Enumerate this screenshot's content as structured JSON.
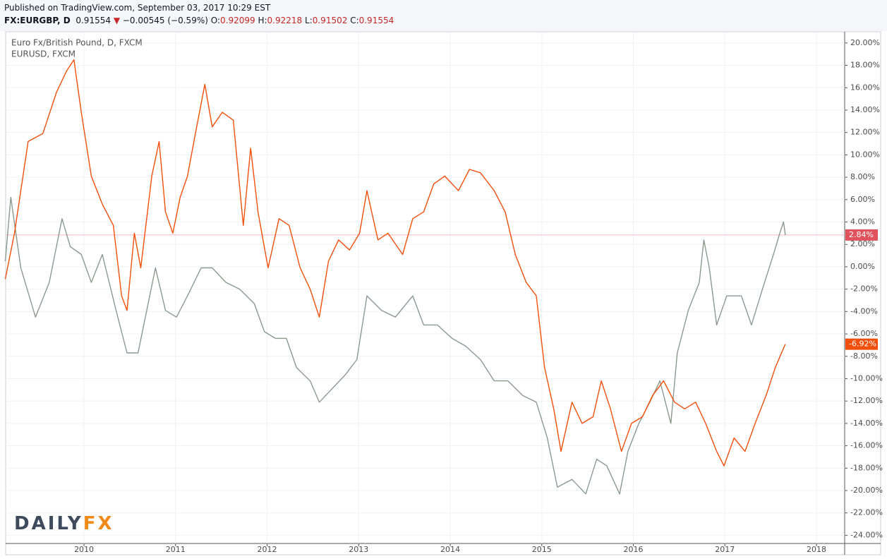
{
  "header": {
    "published": "Published on TradingView.com, September 03, 2017 10:29 EST",
    "symbol": "FX:EURGBP, D",
    "price": "0.91554",
    "change": "−0.00545 (−0.59%)",
    "ohlc": [
      {
        "label": "O:",
        "value": "0.92099"
      },
      {
        "label": "H:",
        "value": "0.92218"
      },
      {
        "label": "L:",
        "value": "0.91502"
      },
      {
        "label": "C:",
        "value": "0.91554"
      }
    ]
  },
  "logo": [
    "DAILY",
    "FX"
  ],
  "chart_data": {
    "type": "line",
    "grid": true,
    "xlim": [
      2009.144,
      2018.308
    ],
    "xticks": [
      2010,
      2011,
      2012,
      2013,
      2014,
      2015,
      2016,
      2017,
      2018
    ],
    "ylim": [
      -24.73,
      21.0
    ],
    "yticks": [
      {
        "value": 20,
        "label": "20.00%"
      },
      {
        "value": 18,
        "label": "18.00%"
      },
      {
        "value": 16,
        "label": "16.00%"
      },
      {
        "value": 14,
        "label": "14.00%"
      },
      {
        "value": 12,
        "label": "12.00%"
      },
      {
        "value": 10,
        "label": "10.00%"
      },
      {
        "value": 8,
        "label": "8.00%"
      },
      {
        "value": 6,
        "label": "6.00%"
      },
      {
        "value": 4,
        "label": "4.00%"
      },
      {
        "value": 2,
        "label": "2.00%"
      },
      {
        "value": 0,
        "label": "0.00%"
      },
      {
        "value": -2,
        "label": "-2.00%"
      },
      {
        "value": -4,
        "label": "-4.00%"
      },
      {
        "value": -6,
        "label": "-6.00%"
      },
      {
        "value": -8,
        "label": "-8.00%"
      },
      {
        "value": -10,
        "label": "-10.00%"
      },
      {
        "value": -12,
        "label": "-12.00%"
      },
      {
        "value": -14,
        "label": "-14.00%"
      },
      {
        "value": -16,
        "label": "-16.00%"
      },
      {
        "value": -18,
        "label": "-18.00%"
      },
      {
        "value": -20,
        "label": "-20.00%"
      },
      {
        "value": -22,
        "label": "-22.00%"
      },
      {
        "value": -24,
        "label": "-24.00%"
      }
    ],
    "series": [
      {
        "name": "Euro Fx/British Pound, D, FXCM",
        "color": "#8a9a8c",
        "label_color": "#e0535c",
        "x": [
          2009.14,
          2009.2,
          2009.31,
          2009.47,
          2009.62,
          2009.76,
          2009.85,
          2009.97,
          2010.08,
          2010.2,
          2010.35,
          2010.47,
          2010.59,
          2010.7,
          2010.78,
          2010.89,
          2011.01,
          2011.13,
          2011.28,
          2011.4,
          2011.55,
          2011.7,
          2011.86,
          2011.97,
          2012.09,
          2012.21,
          2012.32,
          2012.47,
          2012.57,
          2012.71,
          2012.86,
          2012.98,
          2013.09,
          2013.25,
          2013.4,
          2013.59,
          2013.71,
          2013.86,
          2014.02,
          2014.17,
          2014.33,
          2014.48,
          2014.63,
          2014.79,
          2014.94,
          2015.06,
          2015.17,
          2015.33,
          2015.48,
          2015.6,
          2015.71,
          2015.85,
          2015.94,
          2016.06,
          2016.18,
          2016.29,
          2016.41,
          2016.48,
          2016.6,
          2016.72,
          2016.77,
          2016.83,
          2016.91,
          2017.02,
          2017.18,
          2017.29,
          2017.41,
          2017.53,
          2017.6,
          2017.64,
          2017.66
        ],
        "values": [
          0.5,
          6.2,
          -0.1,
          -4.5,
          -1.4,
          4.3,
          1.8,
          1.1,
          -1.4,
          1.1,
          -3.9,
          -7.7,
          -7.7,
          -3.3,
          -0.1,
          -3.9,
          -4.5,
          -2.6,
          -0.1,
          -0.1,
          -1.4,
          -2.0,
          -3.3,
          -5.8,
          -6.4,
          -6.4,
          -9.0,
          -10.2,
          -12.1,
          -10.9,
          -9.6,
          -8.3,
          -2.6,
          -3.9,
          -4.5,
          -2.6,
          -5.2,
          -5.2,
          -6.4,
          -7.1,
          -8.3,
          -10.2,
          -10.2,
          -11.5,
          -12.1,
          -15.3,
          -19.7,
          -19.0,
          -20.3,
          -17.2,
          -17.8,
          -20.3,
          -16.5,
          -14.0,
          -12.1,
          -10.2,
          -14.0,
          -7.7,
          -3.9,
          -1.4,
          2.4,
          -0.1,
          -5.2,
          -2.6,
          -2.6,
          -5.2,
          -2.0,
          1.1,
          3.0,
          4.0,
          2.84
        ],
        "last_value": 2.84,
        "last_label": "2.84%"
      },
      {
        "name": "EURUSD, FXCM",
        "color": "#f24f0c",
        "label_color": "#f24f0c",
        "x": [
          2009.14,
          2009.24,
          2009.39,
          2009.55,
          2009.7,
          2009.81,
          2009.89,
          2009.97,
          2010.08,
          2010.2,
          2010.32,
          2010.41,
          2010.47,
          2010.55,
          2010.62,
          2010.74,
          2010.82,
          2010.89,
          2010.97,
          2011.05,
          2011.13,
          2011.2,
          2011.32,
          2011.4,
          2011.51,
          2011.63,
          2011.74,
          2011.82,
          2011.9,
          2012.01,
          2012.13,
          2012.24,
          2012.36,
          2012.47,
          2012.57,
          2012.67,
          2012.78,
          2012.9,
          2013.01,
          2013.09,
          2013.21,
          2013.32,
          2013.48,
          2013.59,
          2013.71,
          2013.82,
          2013.94,
          2014.09,
          2014.21,
          2014.33,
          2014.48,
          2014.6,
          2014.71,
          2014.83,
          2014.94,
          2015.03,
          2015.13,
          2015.21,
          2015.33,
          2015.44,
          2015.56,
          2015.65,
          2015.75,
          2015.87,
          2015.98,
          2016.1,
          2016.21,
          2016.33,
          2016.45,
          2016.56,
          2016.68,
          2016.79,
          2016.91,
          2016.99,
          2017.1,
          2017.22,
          2017.33,
          2017.45,
          2017.55,
          2017.66
        ],
        "values": [
          -1.1,
          3,
          11.2,
          11.9,
          15.6,
          17.5,
          18.5,
          13.8,
          8.1,
          5.6,
          3.7,
          -2.6,
          -3.9,
          3,
          -0.1,
          8.1,
          11.2,
          4.9,
          3,
          6.2,
          8.1,
          11.2,
          16.3,
          12.5,
          13.8,
          13.1,
          3.7,
          10.6,
          4.9,
          -0.1,
          4.3,
          3.7,
          -0.1,
          -2.0,
          -4.5,
          0.5,
          2.4,
          1.5,
          3,
          6.8,
          2.4,
          3,
          1.1,
          4.3,
          4.9,
          7.4,
          8.1,
          6.8,
          8.7,
          8.4,
          6.8,
          4.9,
          1.1,
          -1.4,
          -2.6,
          -9.0,
          -12.7,
          -16.5,
          -12.1,
          -14.0,
          -13.4,
          -10.2,
          -12.7,
          -16.5,
          -14.0,
          -13.4,
          -11.5,
          -10.2,
          -12.1,
          -12.7,
          -12.1,
          -14.0,
          -16.5,
          -17.8,
          -15.3,
          -16.5,
          -14.0,
          -11.5,
          -9.0,
          -6.92
        ],
        "last_value": -6.92,
        "last_label": "-6.92%"
      }
    ]
  }
}
